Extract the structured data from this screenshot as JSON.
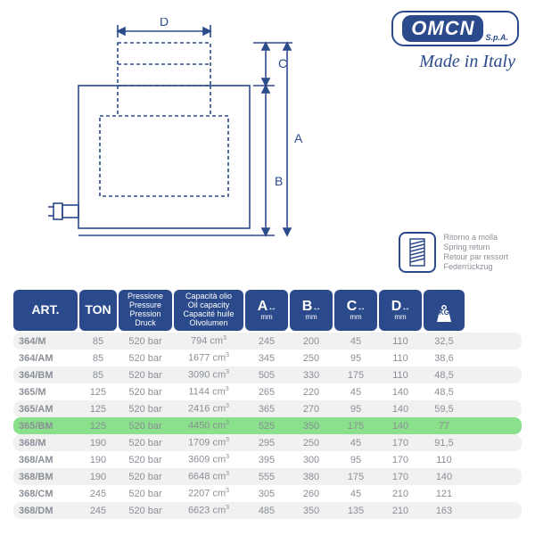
{
  "brand": {
    "logo_text": "OMCN",
    "suffix": "S.p.A.",
    "tagline": "Made in Italy",
    "brand_color": "#2b4a8b"
  },
  "diagram": {
    "labels": {
      "A": "A",
      "B": "B",
      "C": "C",
      "D": "D"
    },
    "stroke_color": "#2b4a8b",
    "dash": "4,3"
  },
  "spring_return": {
    "lines": [
      "Ritorno a molla",
      "Spring return",
      "Retour par ressort",
      "Federrückzug"
    ]
  },
  "table": {
    "header_bg": "#2b4a8b",
    "header_fg": "#ffffff",
    "row_even_bg": "#f1f1f1",
    "highlight_bg": "#8be08b",
    "text_color": "#8a8f97",
    "columns": {
      "art": "ART.",
      "ton": "TON",
      "pressure": [
        "Pressione",
        "Pressure",
        "Pression",
        "Druck"
      ],
      "oil": [
        "Capacità olio",
        "Oil capacity",
        "Capacité huile",
        "Olvolumen"
      ],
      "A": "A",
      "B": "B",
      "C": "C",
      "D": "D",
      "mm": "mm",
      "kg": "KG"
    },
    "rows": [
      {
        "art": "364/M",
        "ton": "85",
        "pres": "520 bar",
        "oil": "794 cm³",
        "A": "245",
        "B": "200",
        "C": "45",
        "D": "110",
        "kg": "32,5",
        "hl": false
      },
      {
        "art": "364/AM",
        "ton": "85",
        "pres": "520 bar",
        "oil": "1677 cm³",
        "A": "345",
        "B": "250",
        "C": "95",
        "D": "110",
        "kg": "38,6",
        "hl": false
      },
      {
        "art": "364/BM",
        "ton": "85",
        "pres": "520 bar",
        "oil": "3090 cm³",
        "A": "505",
        "B": "330",
        "C": "175",
        "D": "110",
        "kg": "48,5",
        "hl": false
      },
      {
        "art": "365/M",
        "ton": "125",
        "pres": "520 bar",
        "oil": "1144 cm³",
        "A": "265",
        "B": "220",
        "C": "45",
        "D": "140",
        "kg": "48,5",
        "hl": false
      },
      {
        "art": "365/AM",
        "ton": "125",
        "pres": "520 bar",
        "oil": "2416 cm³",
        "A": "365",
        "B": "270",
        "C": "95",
        "D": "140",
        "kg": "59,5",
        "hl": false
      },
      {
        "art": "365/BM",
        "ton": "125",
        "pres": "520 bar",
        "oil": "4450 cm³",
        "A": "525",
        "B": "350",
        "C": "175",
        "D": "140",
        "kg": "77",
        "hl": true
      },
      {
        "art": "368/M",
        "ton": "190",
        "pres": "520 bar",
        "oil": "1709 cm³",
        "A": "295",
        "B": "250",
        "C": "45",
        "D": "170",
        "kg": "91,5",
        "hl": false
      },
      {
        "art": "368/AM",
        "ton": "190",
        "pres": "520 bar",
        "oil": "3609 cm³",
        "A": "395",
        "B": "300",
        "C": "95",
        "D": "170",
        "kg": "110",
        "hl": false
      },
      {
        "art": "368/BM",
        "ton": "190",
        "pres": "520 bar",
        "oil": "6648 cm³",
        "A": "555",
        "B": "380",
        "C": "175",
        "D": "170",
        "kg": "140",
        "hl": false
      },
      {
        "art": "368/CM",
        "ton": "245",
        "pres": "520 bar",
        "oil": "2207 cm³",
        "A": "305",
        "B": "260",
        "C": "45",
        "D": "210",
        "kg": "121",
        "hl": false
      },
      {
        "art": "368/DM",
        "ton": "245",
        "pres": "520 bar",
        "oil": "6623 cm³",
        "A": "485",
        "B": "350",
        "C": "135",
        "D": "210",
        "kg": "163",
        "hl": false
      }
    ]
  }
}
